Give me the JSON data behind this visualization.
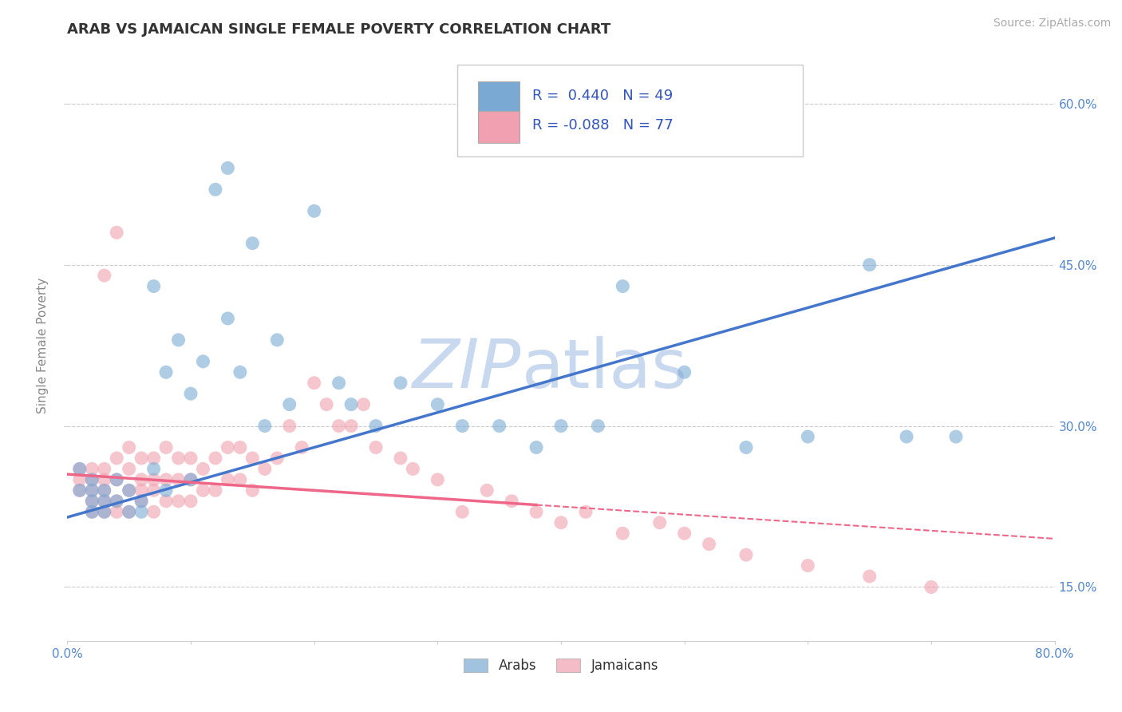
{
  "title": "ARAB VS JAMAICAN SINGLE FEMALE POVERTY CORRELATION CHART",
  "source_text": "Source: ZipAtlas.com",
  "ylabel": "Single Female Poverty",
  "xlim": [
    0.0,
    0.8
  ],
  "ylim": [
    0.1,
    0.65
  ],
  "xticks": [
    0.0,
    0.1,
    0.2,
    0.3,
    0.4,
    0.5,
    0.6,
    0.7,
    0.8
  ],
  "xtick_labels_show": [
    "0.0%",
    "",
    "",
    "",
    "",
    "",
    "",
    "",
    "80.0%"
  ],
  "yticks": [
    0.15,
    0.3,
    0.45,
    0.6
  ],
  "ytick_labels": [
    "15.0%",
    "30.0%",
    "45.0%",
    "60.0%"
  ],
  "grid_color": "#cccccc",
  "background_color": "#ffffff",
  "watermark_text": "ZIPatlas",
  "watermark_color": "#c8d8ee",
  "arab_color": "#7aaad4",
  "jamaican_color": "#f0a0b0",
  "arab_line_color": "#4477cc",
  "jamaican_line_color": "#ee6688",
  "arab_label": "Arabs",
  "jamaican_label": "Jamaicans",
  "arab_R": 0.44,
  "arab_N": 49,
  "jamaican_R": -0.088,
  "jamaican_N": 77,
  "legend_color": "#3355bb",
  "title_color": "#333333",
  "title_fontsize": 13,
  "axis_label_color": "#888888",
  "right_tick_color": "#5588cc",
  "arab_trend_x0": 0.0,
  "arab_trend_y0": 0.215,
  "arab_trend_x1": 0.8,
  "arab_trend_y1": 0.475,
  "jam_trend_x0": 0.0,
  "jam_trend_y0": 0.255,
  "jam_trend_x1": 0.8,
  "jam_trend_y1": 0.195,
  "jam_solid_cutoff": 0.38,
  "arab_scatter_x": [
    0.01,
    0.01,
    0.02,
    0.02,
    0.02,
    0.02,
    0.03,
    0.03,
    0.03,
    0.04,
    0.04,
    0.05,
    0.05,
    0.06,
    0.06,
    0.07,
    0.07,
    0.08,
    0.08,
    0.09,
    0.1,
    0.1,
    0.11,
    0.12,
    0.13,
    0.13,
    0.14,
    0.15,
    0.16,
    0.17,
    0.18,
    0.2,
    0.22,
    0.23,
    0.25,
    0.27,
    0.3,
    0.32,
    0.35,
    0.38,
    0.4,
    0.43,
    0.45,
    0.5,
    0.55,
    0.6,
    0.65,
    0.68,
    0.72
  ],
  "arab_scatter_y": [
    0.24,
    0.26,
    0.22,
    0.24,
    0.23,
    0.25,
    0.22,
    0.23,
    0.24,
    0.23,
    0.25,
    0.22,
    0.24,
    0.22,
    0.23,
    0.43,
    0.26,
    0.24,
    0.35,
    0.38,
    0.25,
    0.33,
    0.36,
    0.52,
    0.54,
    0.4,
    0.35,
    0.47,
    0.3,
    0.38,
    0.32,
    0.5,
    0.34,
    0.32,
    0.3,
    0.34,
    0.32,
    0.3,
    0.3,
    0.28,
    0.3,
    0.3,
    0.43,
    0.35,
    0.28,
    0.29,
    0.45,
    0.29,
    0.29
  ],
  "jamaican_scatter_x": [
    0.01,
    0.01,
    0.01,
    0.02,
    0.02,
    0.02,
    0.02,
    0.02,
    0.03,
    0.03,
    0.03,
    0.03,
    0.03,
    0.04,
    0.04,
    0.04,
    0.04,
    0.05,
    0.05,
    0.05,
    0.05,
    0.06,
    0.06,
    0.06,
    0.06,
    0.07,
    0.07,
    0.07,
    0.07,
    0.08,
    0.08,
    0.08,
    0.09,
    0.09,
    0.09,
    0.1,
    0.1,
    0.1,
    0.11,
    0.11,
    0.12,
    0.12,
    0.13,
    0.13,
    0.14,
    0.14,
    0.15,
    0.15,
    0.16,
    0.17,
    0.18,
    0.19,
    0.2,
    0.21,
    0.22,
    0.23,
    0.24,
    0.25,
    0.27,
    0.28,
    0.3,
    0.32,
    0.34,
    0.36,
    0.38,
    0.4,
    0.42,
    0.45,
    0.48,
    0.5,
    0.52,
    0.55,
    0.6,
    0.65,
    0.7,
    0.03,
    0.04
  ],
  "jamaican_scatter_y": [
    0.24,
    0.25,
    0.26,
    0.22,
    0.23,
    0.24,
    0.25,
    0.26,
    0.22,
    0.23,
    0.24,
    0.25,
    0.26,
    0.22,
    0.23,
    0.25,
    0.27,
    0.22,
    0.24,
    0.26,
    0.28,
    0.23,
    0.24,
    0.25,
    0.27,
    0.22,
    0.24,
    0.25,
    0.27,
    0.23,
    0.25,
    0.28,
    0.23,
    0.25,
    0.27,
    0.23,
    0.25,
    0.27,
    0.24,
    0.26,
    0.24,
    0.27,
    0.25,
    0.28,
    0.25,
    0.28,
    0.24,
    0.27,
    0.26,
    0.27,
    0.3,
    0.28,
    0.34,
    0.32,
    0.3,
    0.3,
    0.32,
    0.28,
    0.27,
    0.26,
    0.25,
    0.22,
    0.24,
    0.23,
    0.22,
    0.21,
    0.22,
    0.2,
    0.21,
    0.2,
    0.19,
    0.18,
    0.17,
    0.16,
    0.15,
    0.44,
    0.48
  ]
}
